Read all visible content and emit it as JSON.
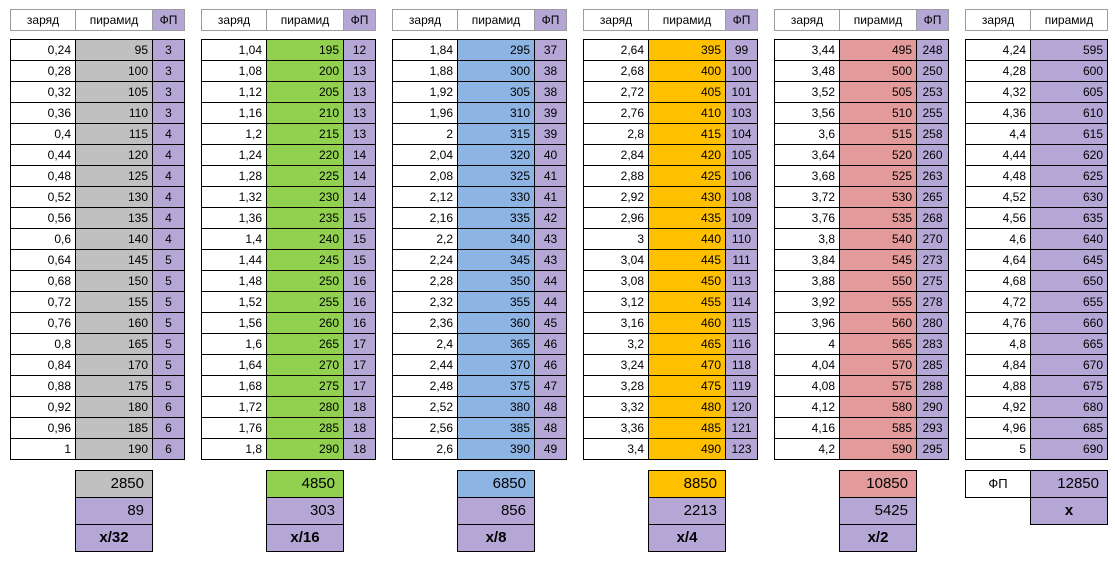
{
  "headers": {
    "z": "заряд",
    "p": "пирамид",
    "f": "ФП"
  },
  "colors": {
    "gray": "#c0c0c0",
    "green": "#92d050",
    "blue": "#8eb4e3",
    "orange": "#ffc000",
    "red": "#e39a9a",
    "lavender": "#b4a7d6"
  },
  "blocks": [
    {
      "color": "#c0c0c0",
      "left": 10,
      "z": [
        "0,24",
        "0,28",
        "0,32",
        "0,36",
        "0,4",
        "0,44",
        "0,48",
        "0,52",
        "0,56",
        "0,6",
        "0,64",
        "0,68",
        "0,72",
        "0,76",
        "0,8",
        "0,84",
        "0,88",
        "0,92",
        "0,96",
        "1"
      ],
      "p": [
        "95",
        "100",
        "105",
        "110",
        "115",
        "120",
        "125",
        "130",
        "135",
        "140",
        "145",
        "150",
        "155",
        "160",
        "165",
        "170",
        "175",
        "180",
        "185",
        "190"
      ],
      "f": [
        "3",
        "3",
        "3",
        "3",
        "4",
        "4",
        "4",
        "4",
        "4",
        "4",
        "5",
        "5",
        "5",
        "5",
        "5",
        "5",
        "5",
        "6",
        "6",
        "6"
      ],
      "sum": {
        "total": "2850",
        "fp": "89",
        "ratio": "x/32"
      }
    },
    {
      "color": "#92d050",
      "left": 201,
      "z": [
        "1,04",
        "1,08",
        "1,12",
        "1,16",
        "1,2",
        "1,24",
        "1,28",
        "1,32",
        "1,36",
        "1,4",
        "1,44",
        "1,48",
        "1,52",
        "1,56",
        "1,6",
        "1,64",
        "1,68",
        "1,72",
        "1,76",
        "1,8"
      ],
      "p": [
        "195",
        "200",
        "205",
        "210",
        "215",
        "220",
        "225",
        "230",
        "235",
        "240",
        "245",
        "250",
        "255",
        "260",
        "265",
        "270",
        "275",
        "280",
        "285",
        "290"
      ],
      "f": [
        "12",
        "13",
        "13",
        "13",
        "13",
        "14",
        "14",
        "14",
        "15",
        "15",
        "15",
        "16",
        "16",
        "16",
        "17",
        "17",
        "17",
        "18",
        "18",
        "18"
      ],
      "sum": {
        "total": "4850",
        "fp": "303",
        "ratio": "x/16"
      }
    },
    {
      "color": "#8eb4e3",
      "left": 392,
      "z": [
        "1,84",
        "1,88",
        "1,92",
        "1,96",
        "2",
        "2,04",
        "2,08",
        "2,12",
        "2,16",
        "2,2",
        "2,24",
        "2,28",
        "2,32",
        "2,36",
        "2,4",
        "2,44",
        "2,48",
        "2,52",
        "2,56",
        "2,6"
      ],
      "p": [
        "295",
        "300",
        "305",
        "310",
        "315",
        "320",
        "325",
        "330",
        "335",
        "340",
        "345",
        "350",
        "355",
        "360",
        "365",
        "370",
        "375",
        "380",
        "385",
        "390"
      ],
      "f": [
        "37",
        "38",
        "38",
        "39",
        "39",
        "40",
        "41",
        "41",
        "42",
        "43",
        "43",
        "44",
        "44",
        "45",
        "46",
        "46",
        "47",
        "48",
        "48",
        "49"
      ],
      "sum": {
        "total": "6850",
        "fp": "856",
        "ratio": "x/8"
      }
    },
    {
      "color": "#ffc000",
      "left": 583,
      "z": [
        "2,64",
        "2,68",
        "2,72",
        "2,76",
        "2,8",
        "2,84",
        "2,88",
        "2,92",
        "2,96",
        "3",
        "3,04",
        "3,08",
        "3,12",
        "3,16",
        "3,2",
        "3,24",
        "3,28",
        "3,32",
        "3,36",
        "3,4"
      ],
      "p": [
        "395",
        "400",
        "405",
        "410",
        "415",
        "420",
        "425",
        "430",
        "435",
        "440",
        "445",
        "450",
        "455",
        "460",
        "465",
        "470",
        "475",
        "480",
        "485",
        "490"
      ],
      "f": [
        "99",
        "100",
        "101",
        "103",
        "104",
        "105",
        "106",
        "108",
        "109",
        "110",
        "111",
        "113",
        "114",
        "115",
        "116",
        "118",
        "119",
        "120",
        "121",
        "123"
      ],
      "sum": {
        "total": "8850",
        "fp": "2213",
        "ratio": "x/4"
      }
    },
    {
      "color": "#e39a9a",
      "left": 774,
      "z": [
        "3,44",
        "3,48",
        "3,52",
        "3,56",
        "3,6",
        "3,64",
        "3,68",
        "3,72",
        "3,76",
        "3,8",
        "3,84",
        "3,88",
        "3,92",
        "3,96",
        "4",
        "4,04",
        "4,08",
        "4,12",
        "4,16",
        "4,2"
      ],
      "p": [
        "495",
        "500",
        "505",
        "510",
        "515",
        "520",
        "525",
        "530",
        "535",
        "540",
        "545",
        "550",
        "555",
        "560",
        "565",
        "570",
        "575",
        "580",
        "585",
        "590"
      ],
      "f": [
        "248",
        "250",
        "253",
        "255",
        "258",
        "260",
        "263",
        "265",
        "268",
        "270",
        "273",
        "275",
        "278",
        "280",
        "283",
        "285",
        "288",
        "290",
        "293",
        "295"
      ],
      "sum": {
        "total": "10850",
        "fp": "5425",
        "ratio": "x/2"
      }
    }
  ],
  "last_block": {
    "z": [
      "4,24",
      "4,28",
      "4,32",
      "4,36",
      "4,4",
      "4,44",
      "4,48",
      "4,52",
      "4,56",
      "4,6",
      "4,64",
      "4,68",
      "4,72",
      "4,76",
      "4,8",
      "4,84",
      "4,88",
      "4,92",
      "4,96",
      "5"
    ],
    "p": [
      "595",
      "600",
      "605",
      "610",
      "615",
      "620",
      "625",
      "630",
      "635",
      "640",
      "645",
      "650",
      "655",
      "660",
      "665",
      "670",
      "675",
      "680",
      "685",
      "690"
    ],
    "sum": {
      "label": "ФП",
      "total": "12850",
      "ratio": "x"
    }
  }
}
